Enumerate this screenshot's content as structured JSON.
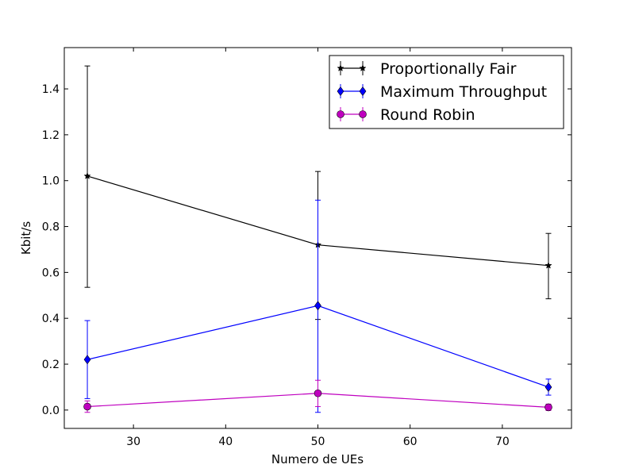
{
  "chart_data": {
    "type": "line",
    "title": "",
    "xlabel": "Numero de UEs",
    "ylabel": "Kbit/s",
    "x": [
      25,
      50,
      75
    ],
    "xlim": [
      22.5,
      77.5
    ],
    "ylim": [
      -0.08,
      1.58
    ],
    "xticks": [
      "30",
      "40",
      "50",
      "60",
      "70"
    ],
    "yticks": [
      "0.0",
      "0.2",
      "0.4",
      "0.6",
      "0.8",
      "1.0",
      "1.2",
      "1.4"
    ],
    "grid": false,
    "legend_position": "top-right",
    "series": [
      {
        "name": "Proportionally Fair",
        "color": "#000000",
        "marker": "star",
        "values": [
          1.02,
          0.72,
          0.63
        ],
        "err_low": [
          0.535,
          0.395,
          0.485
        ],
        "err_high": [
          1.5,
          1.04,
          0.77
        ]
      },
      {
        "name": "Maximum Throughput",
        "color": "#0000ff",
        "marker": "diamond",
        "values": [
          0.22,
          0.455,
          0.1
        ],
        "err_low": [
          0.05,
          -0.01,
          0.065
        ],
        "err_high": [
          0.39,
          0.915,
          0.135
        ]
      },
      {
        "name": "Round Robin",
        "color": "#bf00bf",
        "marker": "circle",
        "values": [
          0.015,
          0.073,
          0.012
        ],
        "err_low": [
          -0.01,
          0.015,
          -0.002
        ],
        "err_high": [
          0.04,
          0.13,
          0.026
        ]
      }
    ]
  }
}
